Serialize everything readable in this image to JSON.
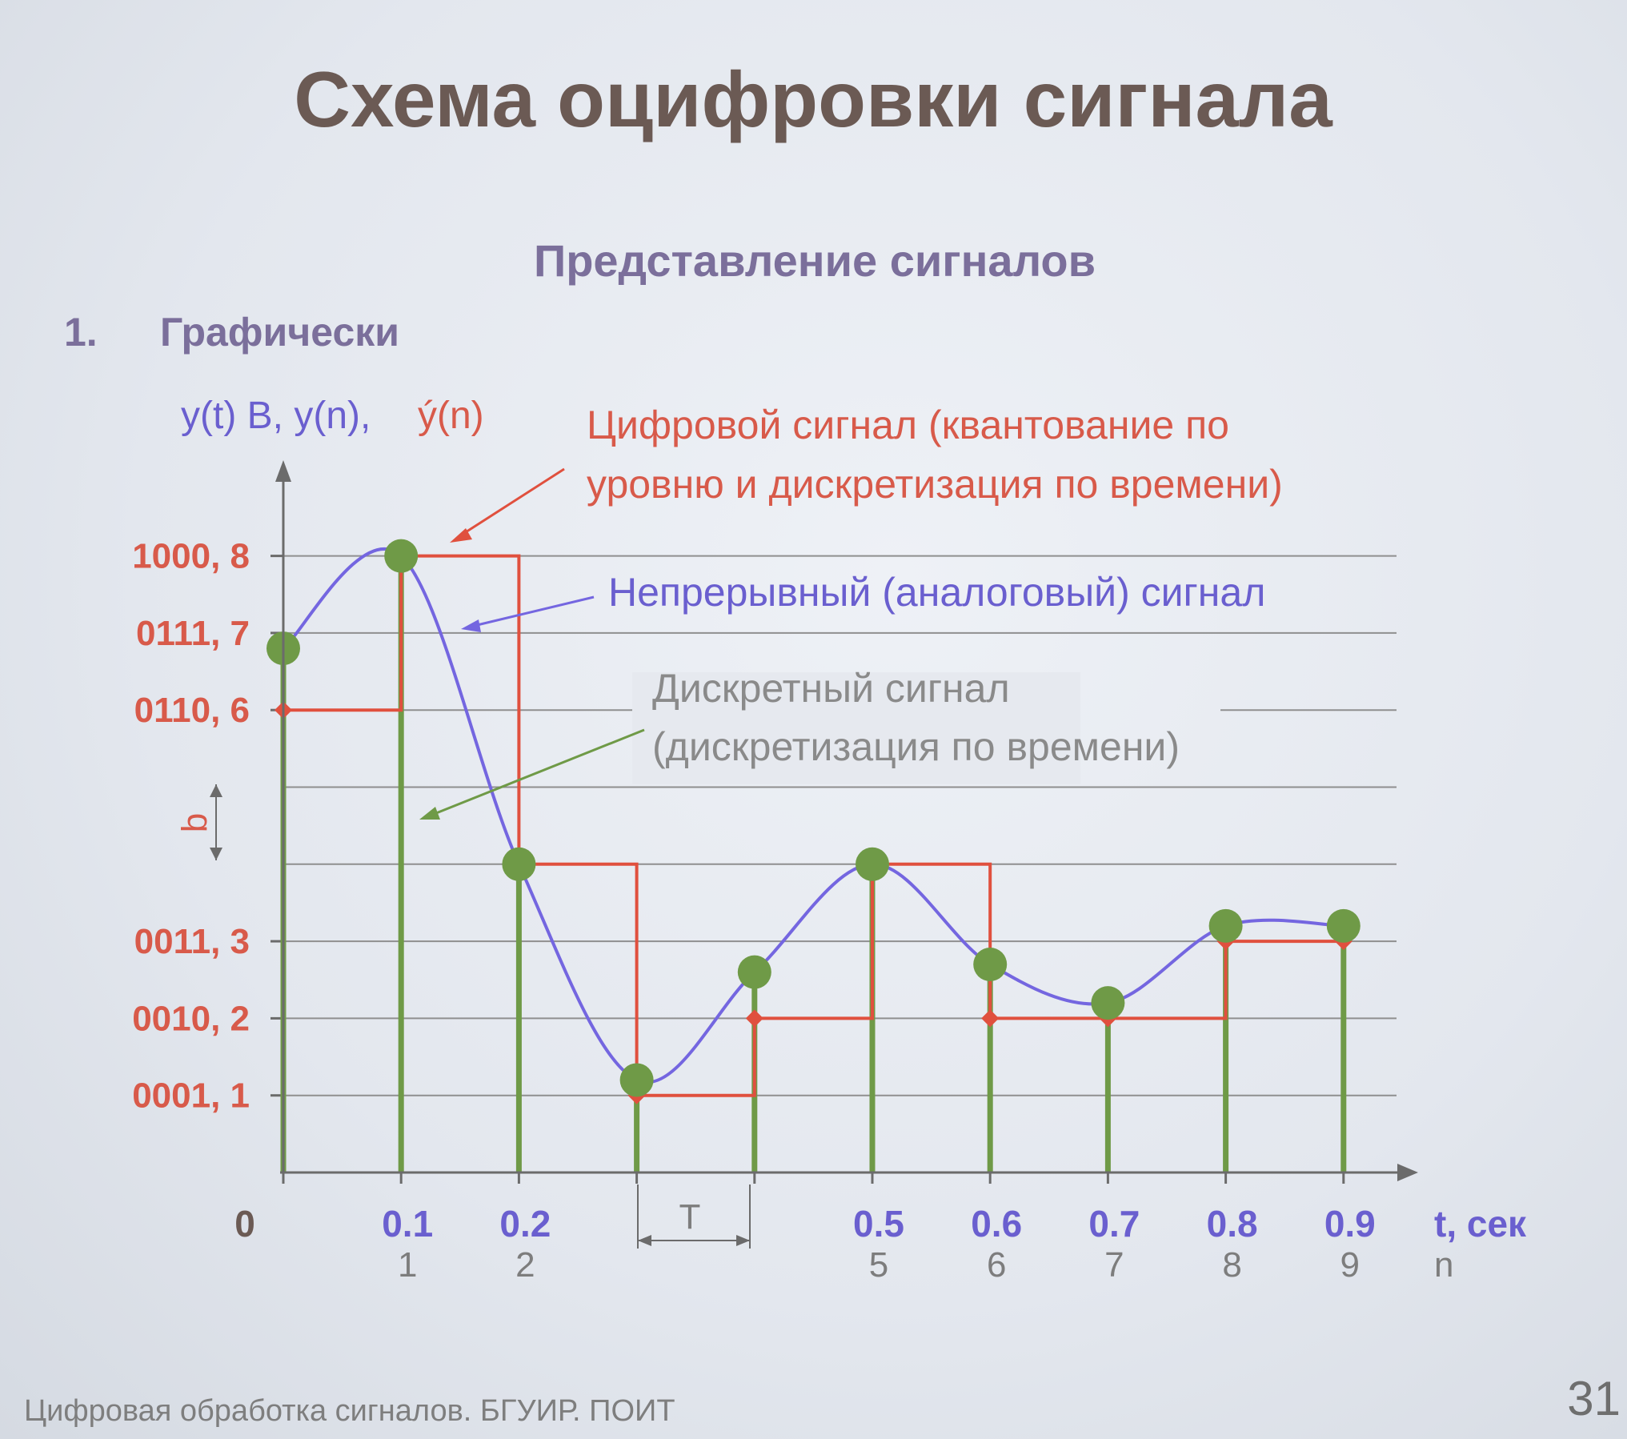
{
  "title": "Схема оцифровки сигнала",
  "subtitle": "Представление сигналов",
  "section": {
    "number": "1.",
    "label": "Графически"
  },
  "y_axis": {
    "label_blue": "y(t) B,  y(n),",
    "label_red": "ý(n)",
    "ticks": [
      {
        "label": "1000, 8",
        "level": 8
      },
      {
        "label": "0111, 7",
        "level": 7
      },
      {
        "label": "0110, 6",
        "level": 6
      },
      {
        "label": "0011, 3",
        "level": 3
      },
      {
        "label": "0010, 2",
        "level": 2
      },
      {
        "label": "0001, 1",
        "level": 1
      }
    ],
    "q_label": "q"
  },
  "x_axis": {
    "zero": "0",
    "t_label": "t, сек",
    "n_label": "n",
    "ticks": [
      {
        "t": "0.1",
        "n": "1"
      },
      {
        "t": "0.2",
        "n": "2"
      },
      {
        "t": "0.5",
        "n": "5"
      },
      {
        "t": "0.6",
        "n": "6"
      },
      {
        "t": "0.7",
        "n": "7"
      },
      {
        "t": "0.8",
        "n": "8"
      },
      {
        "t": "0.9",
        "n": "9"
      }
    ],
    "period_label": "T"
  },
  "annotations": {
    "digital_line1": "Цифровой сигнал (квантование по",
    "digital_line2": "уровню и дискретизация по времени)",
    "analog": "Непрерывный (аналоговый) сигнал",
    "discrete_line1": "Дискретный сигнал",
    "discrete_line2": "(дискретизация по времени)"
  },
  "chart_data": {
    "type": "line",
    "x_t": [
      0,
      0.1,
      0.2,
      0.3,
      0.4,
      0.5,
      0.6,
      0.7,
      0.8,
      0.9
    ],
    "n": [
      0,
      1,
      2,
      3,
      4,
      5,
      6,
      7,
      8,
      9
    ],
    "series": [
      {
        "values": [
          6.8,
          8.0,
          4.0,
          1.2,
          2.6,
          4.0,
          2.7,
          2.2,
          3.2,
          3.2
        ]
      },
      {
        "values": [
          6,
          8,
          4,
          1,
          2,
          4,
          2,
          2,
          3,
          3
        ]
      }
    ],
    "ylim": [
      0,
      8
    ],
    "quantization_levels": [
      1,
      2,
      3,
      4,
      5,
      6,
      7,
      8
    ],
    "colors": {
      "analog": "#7466e0",
      "discrete": "#6f9a47",
      "digital": "#e0503e"
    }
  },
  "footer": "Цифровая обработка сигналов. БГУИР. ПОИТ",
  "page_number": "31"
}
